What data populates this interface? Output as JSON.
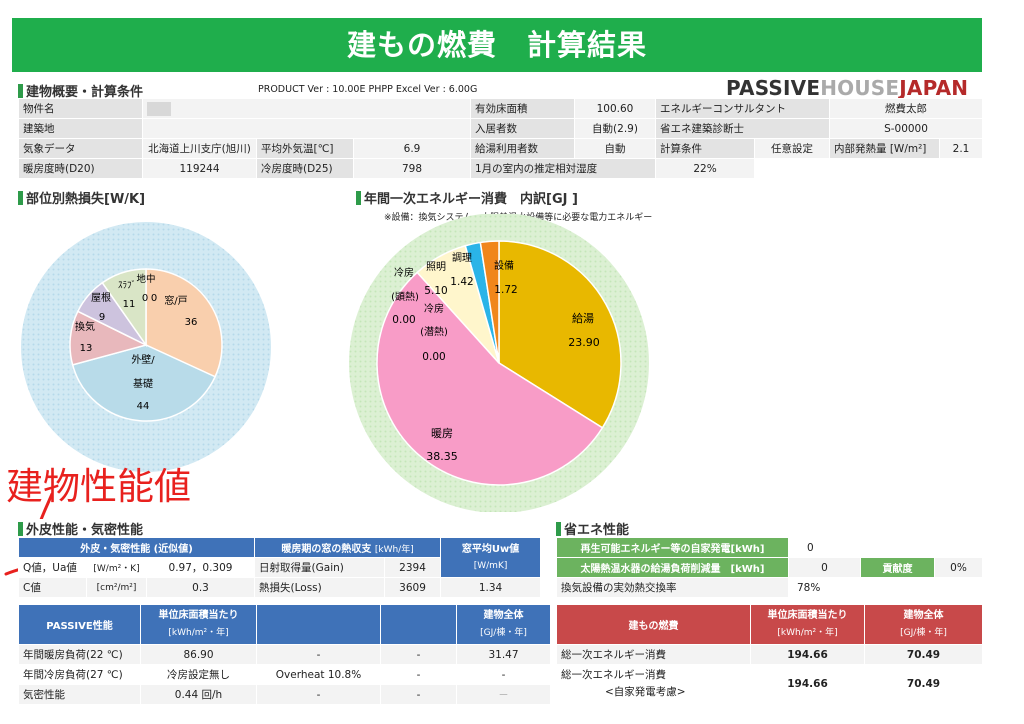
{
  "title": "建もの燃費　計算結果",
  "logo": {
    "part1": "PASSIVE",
    "part2": "HOUSE",
    "part3": "JAPAN"
  },
  "version": "PRODUCT Ver : 10.00E  PHPP Excel Ver : 6.00G",
  "overview": {
    "heading": "建物概要・計算条件",
    "r1": [
      "物件名",
      "",
      "有効床面積",
      "100.60",
      "エネルギーコンサルタント",
      "燃費太郎"
    ],
    "r2": [
      "建築地",
      "",
      "入居者数",
      "自動(2.9)",
      "省エネ建築診断士",
      "S-00000"
    ],
    "r3": [
      "気象データ",
      "北海道上川支庁(旭川)",
      "平均外気温[℃]",
      "6.9",
      "給湯利用者数",
      "自動",
      "計算条件",
      "任意設定",
      "内部発熱量 [W/m²]",
      "2.1"
    ],
    "r4": [
      "暖房度時(D20)",
      "119244",
      "冷房度時(D25)",
      "798",
      "1月の室内の推定相対湿度",
      "22%"
    ]
  },
  "pie1": {
    "heading": "部位別熱損失[W/K]",
    "labels": [
      "窓/戸",
      "36",
      "外壁/",
      "基礎",
      "44",
      "換気",
      "13",
      "屋根",
      "9",
      "ｽﾗﾌﾞ",
      "11",
      "地中",
      "0",
      "0"
    ]
  },
  "pie2": {
    "heading": "年間一次エネルギー消費　内訳[GJ ]",
    "note": "※設備：換気システム、太陽熱温水設備等に必要な電力エネルギー",
    "labels": [
      "給湯",
      "23.90",
      "暖房",
      "38.35",
      "冷房",
      "(顕熱)",
      "0.00",
      "照明",
      "5.10",
      "冷房",
      "(潜熱)",
      "0.00",
      "調理",
      "1.42",
      "設備",
      "1.72"
    ]
  },
  "chart_data": [
    {
      "type": "pie",
      "title": "部位別熱損失[W/K]",
      "categories": [
        "窓/戸",
        "外壁/基礎",
        "換気",
        "屋根",
        "ｽﾗﾌﾞ",
        "地中"
      ],
      "values": [
        36,
        44,
        13,
        9,
        11,
        0
      ],
      "colors": [
        "#f9cfad",
        "#b8dbe9",
        "#e8b8bc",
        "#cdc3de",
        "#d9e5c6",
        "#e8e8e8"
      ]
    },
    {
      "type": "pie",
      "title": "年間一次エネルギー消費　内訳[GJ ]",
      "categories": [
        "給湯",
        "暖房",
        "冷房(顕熱)",
        "照明",
        "冷房(潜熱)",
        "調理",
        "設備"
      ],
      "values": [
        23.9,
        38.35,
        0.0,
        5.1,
        0.0,
        1.42,
        1.72
      ],
      "colors": [
        "#e8b800",
        "#f89cc7",
        "#9bbad6",
        "#fff6cc",
        "#c6e3b0",
        "#2ab4e8",
        "#f0861b"
      ]
    }
  ],
  "annotation": "建物性能値",
  "envelope": {
    "heading": "外皮性能・気密性能",
    "h1": "外皮・気密性能 (近似値)",
    "h2": "暖房期の窓の熱収支",
    "h2u": "[kWh/年]",
    "h3": "窓平均Uw値",
    "h3u": "[W/mK]",
    "q": "Q値，Ua値",
    "qu": "[W/m²・K]",
    "qv": "0.97，0.309",
    "gain": "日射取得量(Gain)",
    "gainv": "2394",
    "uw": "1.34",
    "c": "C値",
    "cu": "[cm²/m²]",
    "cv": "0.3",
    "loss": "熱損失(Loss)",
    "lossv": "3609"
  },
  "passive": {
    "h1": "PASSIVE性能",
    "h2": "単位床面積当たり",
    "h2u": "[kWh/m²・年]",
    "h3": "建物全体",
    "h3u": "[GJ/棟・年]",
    "r1": [
      "年間暖房負荷(22 ℃)",
      "86.90",
      "-",
      "-",
      "31.47"
    ],
    "r2": [
      "年間冷房負荷(27 ℃)",
      "冷房設定無し",
      "Overheat 10.8%",
      "-",
      "-"
    ],
    "r3": [
      "気密性能",
      "0.44 回/h",
      "-",
      "-",
      "－"
    ]
  },
  "saving": {
    "heading": "省エネ性能",
    "r1": [
      "再生可能エネルギー等の自家発電[kWh]",
      "0"
    ],
    "r2": [
      "太陽熱温水器の給湯負荷削減量　[kWh]",
      "0",
      "貢献度",
      "0%"
    ],
    "r3": [
      "換気設備の実効熱交換率",
      "78%"
    ]
  },
  "fuel": {
    "h1": "建もの燃費",
    "h2": "単位床面積当たり",
    "h2u": "[kWh/m²・年]",
    "h3": "建物全体",
    "h3u": "[GJ/棟・年]",
    "r1": [
      "総一次エネルギー消費",
      "194.66",
      "70.49"
    ],
    "r2a": "総一次エネルギー消費",
    "r2b": "<自家発電考慮>",
    "r2v": [
      "194.66",
      "70.49"
    ]
  }
}
